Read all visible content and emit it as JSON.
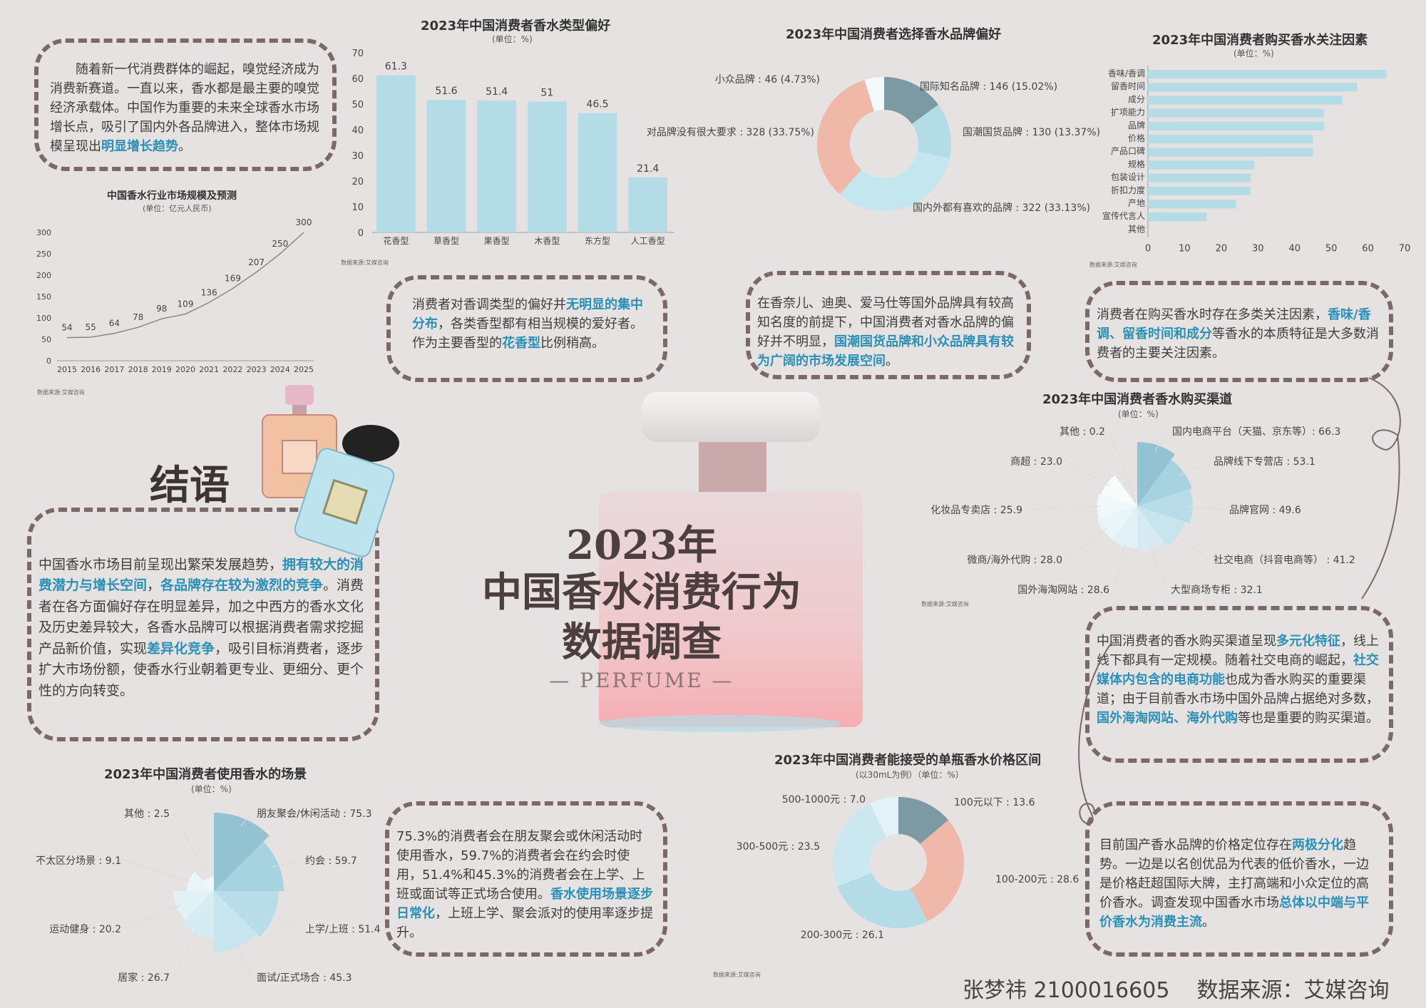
{
  "colors": {
    "bar": "#b3dce6",
    "dark": "#7b9aa4",
    "peach": "#f0b8a8",
    "light": "#cbe8f0",
    "pale": "#e2f2f6",
    "accent": "#2b90b8",
    "border": "#7b6868",
    "bg": "#e6e2e2"
  },
  "main": {
    "year": "2023年",
    "title1": "中国香水消费行为",
    "title2": "数据调查",
    "sub": "— PERFUME —"
  },
  "footer": "张梦祎 2100016605    数据来源：艾媒咨询",
  "source_label": "数据来源:艾媒咨询",
  "conclusion_title": "结语",
  "text_intro": [
    {
      "t": "随着新一代消费群体的崛起，嗅觉经济成为消费新赛道。一直以来，香水都是最主要的嗅觉经济承载体。中国作为重要的未来全球香水市场增长点，吸引了国内外各品牌进入，整体市场规模呈现出"
    },
    {
      "t": "明显增长趋势",
      "h": true
    },
    {
      "t": "。"
    }
  ],
  "text_type": [
    {
      "t": "消费者对香调类型的偏好并"
    },
    {
      "t": "无明显的集中分布",
      "h": true
    },
    {
      "t": "，各类香型都有相当规模的爱好者。作为主要香型的"
    },
    {
      "t": "花香型",
      "h": true
    },
    {
      "t": "比例稍高。"
    }
  ],
  "text_brand": [
    {
      "t": "在香奈儿、迪奥、爱马仕等国外品牌具有较高知名度的前提下，中国消费者对香水品牌的偏好并不明显，"
    },
    {
      "t": "国潮国货品牌和小众品牌具有较为广阔的市场发展空间",
      "h": true
    },
    {
      "t": "。"
    }
  ],
  "text_factor": [
    {
      "t": "消费者在购买香水时存在多类关注因素，"
    },
    {
      "t": "香味/香调、留香时间和成分",
      "h": true
    },
    {
      "t": "等香水的本质特征是大多数消费者的主要关注因素。"
    }
  ],
  "text_conclusion": [
    {
      "t": "中国香水市场目前呈现出繁荣发展趋势，"
    },
    {
      "t": "拥有较大的消费潜力与增长空间",
      "h": true
    },
    {
      "t": "，"
    },
    {
      "t": "各品牌存在较为激烈的竞争",
      "h": true
    },
    {
      "t": "。消费者在各方面偏好存在明显差异，加之中西方的香水文化及历史差异较大，各香水品牌可以根据消费者需求挖掘产品新价值，实现"
    },
    {
      "t": "差异化竞争",
      "h": true
    },
    {
      "t": "，吸引目标消费者，逐步扩大市场份额，使香水行业朝着更专业、更细分、更个性的方向转变。"
    }
  ],
  "text_scene": [
    {
      "t": "75.3%的消费者会在朋友聚会或休闲活动时使用香水，59.7%的消费者会在约会时使用，51.4%和45.3%的消费者会在上学、上班或面试等正式场合使用。"
    },
    {
      "t": "香水使用场景逐步日常化",
      "h": true
    },
    {
      "t": "，上班上学、聚会派对的使用率逐步提升。"
    }
  ],
  "text_channel": [
    {
      "t": "中国消费者的香水购买渠道呈现"
    },
    {
      "t": "多元化特征",
      "h": true
    },
    {
      "t": "，线上线下都具有一定规模。随着社交电商的崛起，"
    },
    {
      "t": "社交媒体内包含的电商功能",
      "h": true
    },
    {
      "t": "也成为香水购买的重要渠道；由于目前香水市场中国外品牌占据绝对多数，"
    },
    {
      "t": "国外海淘网站、海外代购",
      "h": true
    },
    {
      "t": "等也是重要的购买渠道。"
    }
  ],
  "text_price": [
    {
      "t": "目前国产香水品牌的价格定位存在"
    },
    {
      "t": "两极分化",
      "h": true
    },
    {
      "t": "趋势。一边是以名创优品为代表的低价香水，一边是价格赶超国际大牌，主打高端和小众定位的高价香水。调查发现中国香水市场"
    },
    {
      "t": "总体以中端与平价香水为消费主流",
      "h": true
    },
    {
      "t": "。"
    }
  ],
  "chart_data": [
    {
      "id": "market",
      "type": "line",
      "title": "中国香水行业市场规模及预测",
      "unit": "(单位：亿元人民币)",
      "x": [
        "2015",
        "2016",
        "2017",
        "2018",
        "2019",
        "2020",
        "2021",
        "2022",
        "2023",
        "2024",
        "2025"
      ],
      "values": [
        54,
        55,
        64,
        78,
        98,
        109,
        136,
        169,
        207,
        250,
        300
      ],
      "ylim": [
        0,
        300
      ],
      "yticks": [
        0,
        50,
        100,
        150,
        200,
        250,
        300
      ]
    },
    {
      "id": "type",
      "type": "bar",
      "title": "2023年中国消费者香水类型偏好",
      "unit": "(单位：%)",
      "categories": [
        "花香型",
        "草香型",
        "果香型",
        "木香型",
        "东方型",
        "人工香型"
      ],
      "values": [
        61.3,
        51.6,
        51.4,
        51,
        46.5,
        21.4
      ],
      "ylim": [
        0,
        70
      ],
      "yticks": [
        0,
        10,
        20,
        30,
        40,
        50,
        60,
        70
      ]
    },
    {
      "id": "brand",
      "type": "pie",
      "title": "2023年中国消费者选择香水品牌偏好",
      "slices": [
        {
          "label": "国际知名品牌 : 146 (15.02%)",
          "value": 146,
          "color": "#7b9aa4"
        },
        {
          "label": "国潮国货品牌 : 130 (13.37%)",
          "value": 130,
          "color": "#b3dce6"
        },
        {
          "label": "国内外都有喜欢的品牌 : 322 (33.13%)",
          "value": 322,
          "color": "#c4e6ef"
        },
        {
          "label": "对品牌没有很大要求 : 328 (33.75%)",
          "value": 328,
          "color": "#f0b8a8"
        },
        {
          "label": "小众品牌 : 46 (4.73%)",
          "value": 46,
          "color": "#f4fafc"
        }
      ]
    },
    {
      "id": "factor",
      "type": "bar",
      "orientation": "horizontal",
      "title": "2023年中国消费者购买香水关注因素",
      "unit": "(单位：%)",
      "categories": [
        "香味/香调",
        "留香时间",
        "成分",
        "扩项能力",
        "品牌",
        "价格",
        "产品口碑",
        "规格",
        "包装设计",
        "折扣力度",
        "产地",
        "宣传代言人",
        "其他"
      ],
      "values": [
        65,
        57,
        53,
        48,
        48,
        45,
        45,
        29,
        28,
        28,
        24,
        16,
        0
      ],
      "xlim": [
        0,
        70
      ],
      "xticks": [
        0,
        10,
        20,
        30,
        40,
        50,
        60,
        70
      ]
    },
    {
      "id": "channel",
      "type": "pie",
      "subtype": "rose",
      "title": "2023年中国消费者香水购买渠道",
      "unit": "(单位：%)",
      "slices": [
        {
          "label": "国内电商平台（天猫、京东等）: 66.3",
          "value": 66.3
        },
        {
          "label": "品牌线下专营店 : 53.1",
          "value": 53.1
        },
        {
          "label": "品牌官网 : 49.6",
          "value": 49.6
        },
        {
          "label": "社交电商（抖音电商等） : 41.2",
          "value": 41.2
        },
        {
          "label": "大型商场专柜 : 32.1",
          "value": 32.1
        },
        {
          "label": "国外海淘网站 : 28.6",
          "value": 28.6
        },
        {
          "label": "微商/海外代购 : 28.0",
          "value": 28.0
        },
        {
          "label": "化妆品专卖店 : 25.9",
          "value": 25.9
        },
        {
          "label": "商超 : 23.0",
          "value": 23.0
        },
        {
          "label": "其他 : 0.2",
          "value": 0.2
        }
      ]
    },
    {
      "id": "scene",
      "type": "pie",
      "subtype": "rose",
      "title": "2023年中国消费者使用香水的场景",
      "unit": "(单位：%)",
      "slices": [
        {
          "label": "朋友聚会/休闲活动 : 75.3",
          "value": 75.3
        },
        {
          "label": "约会 : 59.7",
          "value": 59.7
        },
        {
          "label": "上学/上班 : 51.4",
          "value": 51.4
        },
        {
          "label": "面试/正式场合 : 45.3",
          "value": 45.3
        },
        {
          "label": "居家 : 26.7",
          "value": 26.7
        },
        {
          "label": "运动健身 : 20.2",
          "value": 20.2
        },
        {
          "label": "不太区分场景 : 9.1",
          "value": 9.1
        },
        {
          "label": "其他 : 2.5",
          "value": 2.5
        }
      ]
    },
    {
      "id": "price",
      "type": "pie",
      "title": "2023年中国消费者能接受的单瓶香水价格区间",
      "unit": "(以30mL为例）（单位：%）",
      "slices": [
        {
          "label": "100元以下 : 13.6",
          "value": 13.6,
          "color": "#7b9aa4"
        },
        {
          "label": "100-200元 : 28.6",
          "value": 28.6,
          "color": "#f0b8a8"
        },
        {
          "label": "200-300元 : 26.1",
          "value": 26.1,
          "color": "#b3dce6"
        },
        {
          "label": "300-500元 : 23.5",
          "value": 23.5,
          "color": "#cbe8f0"
        },
        {
          "label": "500-1000元 : 7.0",
          "value": 7.0,
          "color": "#e2f2f6"
        }
      ]
    }
  ]
}
